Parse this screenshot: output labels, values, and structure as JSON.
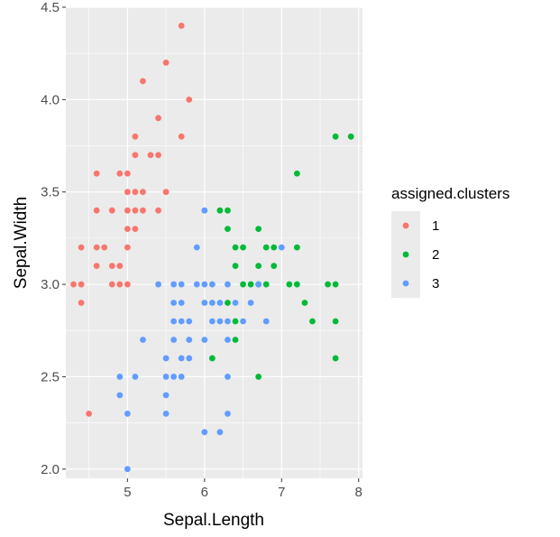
{
  "chart_data": {
    "type": "scatter",
    "title": "",
    "xlabel": "Sepal.Length",
    "ylabel": "Sepal.Width",
    "xlim": [
      4.2,
      8.05
    ],
    "ylim": [
      1.95,
      4.5
    ],
    "x_ticks": [
      5,
      6,
      7,
      8
    ],
    "y_ticks": [
      2.0,
      2.5,
      3.0,
      3.5,
      4.0,
      4.5
    ],
    "y_tick_labels": [
      "2.0",
      "2.5",
      "3.0",
      "3.5",
      "4.0",
      "4.5"
    ],
    "grid": true,
    "legend": {
      "title": "assigned.clusters",
      "placement": "right"
    },
    "series": [
      {
        "name": "1",
        "color": "#F8766D",
        "points": [
          [
            4.3,
            3.0
          ],
          [
            4.4,
            3.0
          ],
          [
            4.4,
            2.9
          ],
          [
            4.4,
            3.2
          ],
          [
            4.5,
            2.3
          ],
          [
            4.6,
            3.1
          ],
          [
            4.6,
            3.2
          ],
          [
            4.6,
            3.4
          ],
          [
            4.6,
            3.6
          ],
          [
            4.7,
            3.2
          ],
          [
            4.8,
            3.0
          ],
          [
            4.8,
            3.1
          ],
          [
            4.8,
            3.4
          ],
          [
            4.9,
            3.0
          ],
          [
            4.9,
            3.1
          ],
          [
            4.9,
            3.6
          ],
          [
            5.0,
            3.0
          ],
          [
            5.0,
            3.2
          ],
          [
            5.0,
            3.3
          ],
          [
            5.0,
            3.4
          ],
          [
            5.0,
            3.5
          ],
          [
            5.0,
            3.6
          ],
          [
            5.1,
            3.3
          ],
          [
            5.1,
            3.4
          ],
          [
            5.1,
            3.5
          ],
          [
            5.1,
            3.7
          ],
          [
            5.1,
            3.8
          ],
          [
            5.2,
            3.4
          ],
          [
            5.2,
            3.5
          ],
          [
            5.2,
            4.1
          ],
          [
            5.3,
            3.7
          ],
          [
            5.4,
            3.4
          ],
          [
            5.4,
            3.7
          ],
          [
            5.4,
            3.9
          ],
          [
            5.5,
            3.5
          ],
          [
            5.5,
            4.2
          ],
          [
            5.7,
            3.8
          ],
          [
            5.7,
            4.4
          ],
          [
            5.8,
            4.0
          ]
        ]
      },
      {
        "name": "2",
        "color": "#00BA38",
        "points": [
          [
            6.1,
            2.6
          ],
          [
            6.2,
            3.4
          ],
          [
            6.3,
            3.4
          ],
          [
            6.3,
            3.3
          ],
          [
            6.3,
            2.9
          ],
          [
            6.4,
            3.2
          ],
          [
            6.4,
            3.1
          ],
          [
            6.4,
            2.8
          ],
          [
            6.4,
            2.7
          ],
          [
            6.5,
            3.2
          ],
          [
            6.5,
            3.0
          ],
          [
            6.6,
            3.0
          ],
          [
            6.7,
            3.3
          ],
          [
            6.7,
            3.1
          ],
          [
            6.7,
            3.0
          ],
          [
            6.7,
            2.5
          ],
          [
            6.8,
            3.2
          ],
          [
            6.8,
            3.0
          ],
          [
            6.9,
            3.2
          ],
          [
            6.9,
            3.1
          ],
          [
            7.1,
            3.0
          ],
          [
            7.2,
            3.6
          ],
          [
            7.2,
            3.2
          ],
          [
            7.2,
            3.0
          ],
          [
            7.3,
            2.9
          ],
          [
            7.4,
            2.8
          ],
          [
            7.6,
            3.0
          ],
          [
            7.7,
            3.8
          ],
          [
            7.7,
            3.0
          ],
          [
            7.7,
            2.8
          ],
          [
            7.7,
            2.6
          ],
          [
            7.9,
            3.8
          ]
        ]
      },
      {
        "name": "3",
        "color": "#619CFF",
        "points": [
          [
            4.9,
            2.5
          ],
          [
            4.9,
            2.4
          ],
          [
            5.0,
            2.3
          ],
          [
            5.0,
            2.0
          ],
          [
            5.1,
            2.5
          ],
          [
            5.2,
            2.7
          ],
          [
            5.4,
            3.0
          ],
          [
            5.5,
            2.6
          ],
          [
            5.5,
            2.5
          ],
          [
            5.5,
            2.4
          ],
          [
            5.5,
            2.3
          ],
          [
            5.6,
            3.0
          ],
          [
            5.6,
            2.9
          ],
          [
            5.6,
            2.8
          ],
          [
            5.6,
            2.7
          ],
          [
            5.6,
            2.5
          ],
          [
            5.7,
            3.0
          ],
          [
            5.7,
            2.9
          ],
          [
            5.7,
            2.8
          ],
          [
            5.7,
            2.6
          ],
          [
            5.7,
            2.5
          ],
          [
            5.8,
            2.8
          ],
          [
            5.8,
            2.7
          ],
          [
            5.8,
            2.6
          ],
          [
            5.9,
            3.2
          ],
          [
            5.9,
            3.0
          ],
          [
            6.0,
            3.4
          ],
          [
            6.0,
            3.0
          ],
          [
            6.0,
            2.9
          ],
          [
            6.0,
            2.7
          ],
          [
            6.0,
            2.2
          ],
          [
            6.1,
            3.0
          ],
          [
            6.1,
            2.9
          ],
          [
            6.1,
            2.8
          ],
          [
            6.2,
            2.9
          ],
          [
            6.2,
            2.8
          ],
          [
            6.2,
            2.2
          ],
          [
            6.3,
            3.0
          ],
          [
            6.3,
            2.8
          ],
          [
            6.3,
            2.7
          ],
          [
            6.3,
            2.5
          ],
          [
            6.3,
            2.3
          ],
          [
            6.4,
            2.9
          ],
          [
            6.5,
            2.8
          ],
          [
            6.6,
            2.9
          ],
          [
            6.7,
            3.0
          ],
          [
            6.8,
            2.8
          ],
          [
            7.0,
            3.2
          ]
        ]
      }
    ]
  }
}
